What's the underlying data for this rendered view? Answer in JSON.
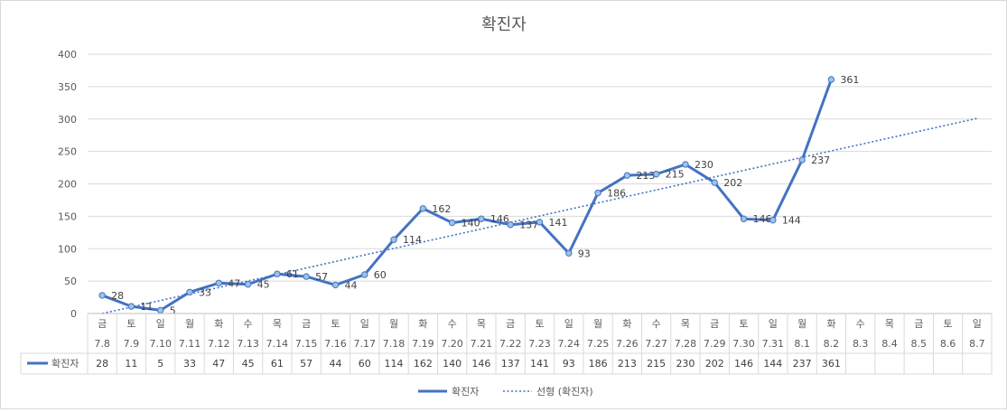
{
  "chart_data": {
    "type": "line",
    "title": "확진자",
    "day_labels": [
      "금",
      "토",
      "일",
      "월",
      "화",
      "수",
      "목",
      "금",
      "토",
      "일",
      "월",
      "화",
      "수",
      "목",
      "금",
      "토",
      "일",
      "월",
      "화",
      "수",
      "목",
      "금",
      "토",
      "일",
      "월",
      "화",
      "수",
      "목",
      "금",
      "토",
      "일"
    ],
    "date_labels": [
      "7.8",
      "7.9",
      "7.10",
      "7.11",
      "7.12",
      "7.13",
      "7.14",
      "7.15",
      "7.16",
      "7.17",
      "7.18",
      "7.19",
      "7.20",
      "7.21",
      "7.22",
      "7.23",
      "7.24",
      "7.25",
      "7.26",
      "7.27",
      "7.28",
      "7.29",
      "7.30",
      "7.31",
      "8.1",
      "8.2",
      "8.3",
      "8.4",
      "8.5",
      "8.6",
      "8.7"
    ],
    "series": [
      {
        "name": "확진자",
        "color": "#4472c4",
        "values": [
          28,
          11,
          5,
          33,
          47,
          45,
          61,
          57,
          44,
          60,
          114,
          162,
          140,
          146,
          137,
          141,
          93,
          186,
          213,
          215,
          230,
          202,
          146,
          144,
          237,
          361
        ]
      }
    ],
    "trendline": {
      "name": "선형 (확진자)",
      "type": "linear",
      "color": "#4472c4",
      "start": 0,
      "end": 301
    },
    "ylim": [
      0,
      400
    ],
    "yticks": [
      0,
      50,
      100,
      150,
      200,
      250,
      300,
      350,
      400
    ],
    "grid": true,
    "legend_position": "bottom",
    "data_table": true
  }
}
